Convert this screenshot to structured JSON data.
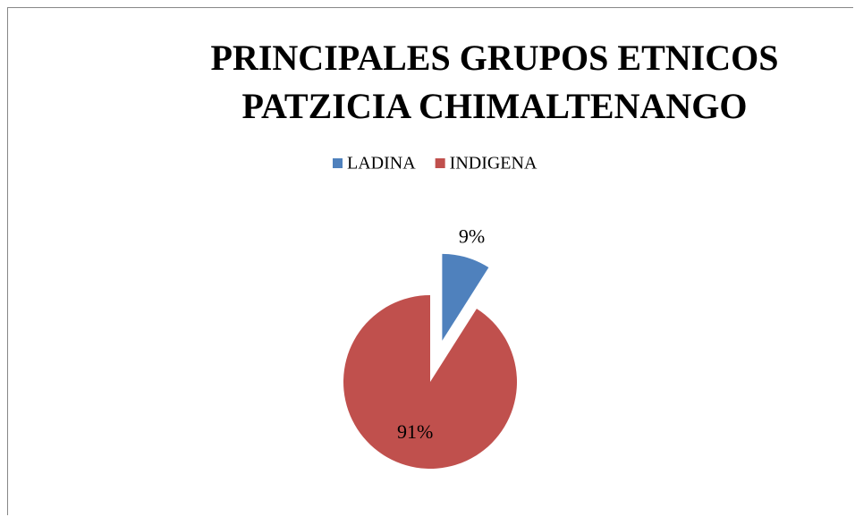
{
  "chart_data": {
    "type": "pie",
    "title": "PRINCIPALES GRUPOS ETNICOS PATZICIA CHIMALTENANGO",
    "categories": [
      "LADINA",
      "INDIGENA"
    ],
    "values": [
      9,
      91
    ],
    "value_labels": [
      "9%",
      "91%"
    ],
    "colors": [
      "#4f81bd",
      "#c0504d"
    ],
    "legend": "top",
    "exploded": [
      true,
      false
    ]
  }
}
